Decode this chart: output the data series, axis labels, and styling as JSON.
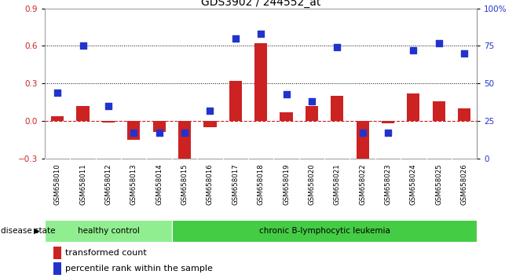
{
  "title": "GDS3902 / 244552_at",
  "samples": [
    "GSM658010",
    "GSM658011",
    "GSM658012",
    "GSM658013",
    "GSM658014",
    "GSM658015",
    "GSM658016",
    "GSM658017",
    "GSM658018",
    "GSM658019",
    "GSM658020",
    "GSM658021",
    "GSM658022",
    "GSM658023",
    "GSM658024",
    "GSM658025",
    "GSM658026"
  ],
  "transformed_count": [
    0.04,
    0.12,
    -0.01,
    -0.15,
    -0.09,
    -0.38,
    -0.05,
    0.32,
    0.62,
    0.07,
    0.12,
    0.2,
    -0.35,
    -0.02,
    0.22,
    0.16,
    0.1
  ],
  "percentile_rank": [
    44,
    75,
    35,
    17,
    17,
    17,
    32,
    80,
    83,
    43,
    38,
    74,
    17,
    17,
    72,
    77,
    70
  ],
  "n_healthy": 5,
  "n_leukemia": 12,
  "ylim_left": [
    -0.3,
    0.9
  ],
  "ylim_right": [
    0,
    100
  ],
  "yticks_left": [
    -0.3,
    0.0,
    0.3,
    0.6,
    0.9
  ],
  "yticks_right": [
    0,
    25,
    50,
    75,
    100
  ],
  "bar_color": "#cc2222",
  "dot_color": "#2233cc",
  "hline_color": "#cc2222",
  "bg_color": "#ffffff",
  "xtick_bg": "#d8d8d8",
  "healthy_color": "#90ee90",
  "leukemia_color": "#44cc44",
  "group_label_healthy": "healthy control",
  "group_label_leukemia": "chronic B-lymphocytic leukemia",
  "disease_state_label": "disease state",
  "legend_bar": "transformed count",
  "legend_dot": "percentile rank within the sample",
  "bar_width": 0.5,
  "dot_size": 40
}
